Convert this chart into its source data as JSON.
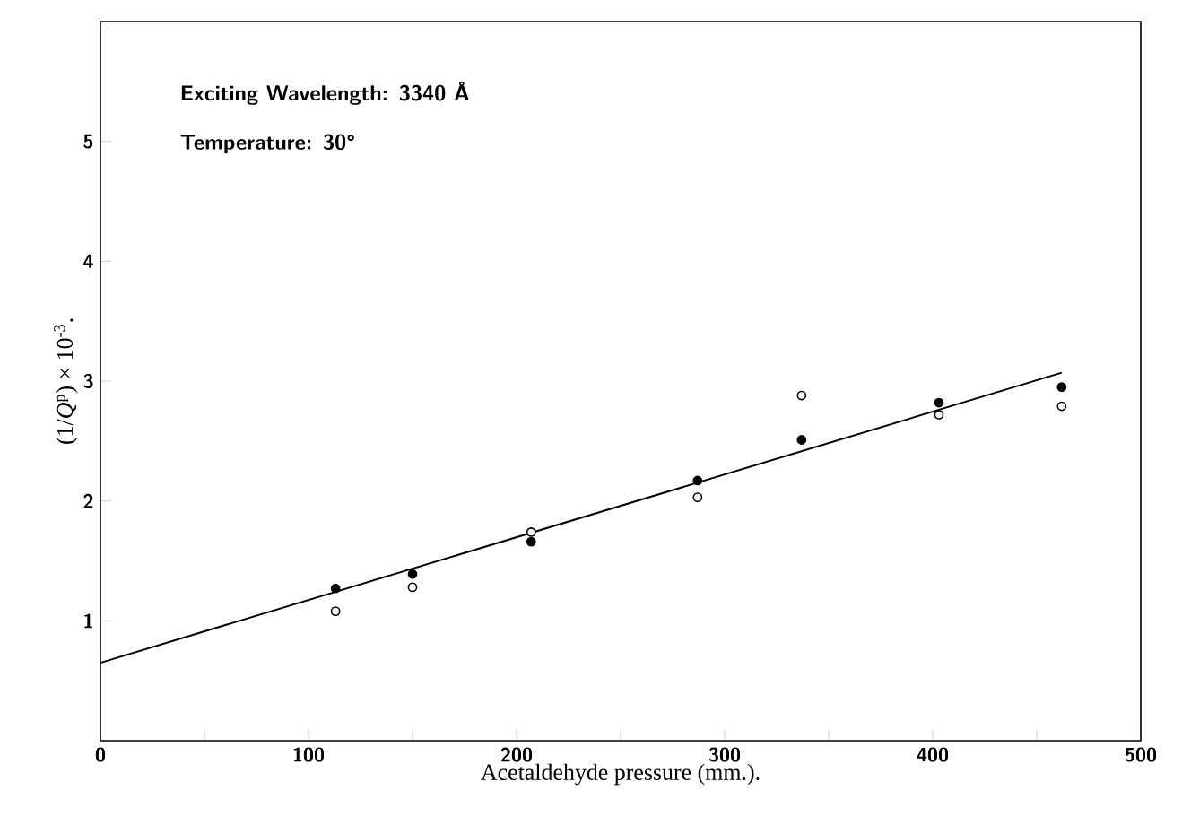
{
  "chart_data": {
    "type": "scatter",
    "xlabel": "Acetaldehyde pressure (mm.).",
    "ylabel": "(1/*Q*$^{p}$) × 10$^{-3}$.",
    "annotations": [
      "Exciting Wavelength: 3340 Å",
      "Temperature: 30°"
    ],
    "xlim": [
      0,
      500
    ],
    "ylim": [
      0,
      6
    ],
    "xticks": [
      0,
      {
        "value": 50,
        "label": null
      },
      100,
      {
        "value": 150,
        "label": null
      },
      200,
      {
        "value": 250,
        "label": null
      },
      300,
      {
        "value": 350,
        "label": null
      },
      400,
      {
        "value": 450,
        "label": null
      },
      500
    ],
    "yticks": [
      1,
      2,
      3,
      4,
      5
    ],
    "grid": false,
    "series": [
      {
        "marker": "circle",
        "color": "#000000",
        "x": [
          113,
          150,
          207,
          287,
          337,
          403,
          462
        ],
        "values": [
          1.27,
          1.39,
          1.66,
          2.17,
          2.51,
          2.82,
          2.95
        ]
      },
      {
        "marker": "circle",
        "color": "#000000",
        "x": [
          113,
          150,
          207,
          287,
          337,
          403,
          462
        ],
        "values": [
          1.08,
          1.28,
          1.74,
          2.03,
          2.88,
          2.72,
          2.79
        ]
      },
      {
        "type": "line",
        "marker": "none",
        "color": "#000000",
        "x": [
          0,
          462
        ],
        "values": [
          0.65,
          3.07
        ]
      }
    ]
  }
}
